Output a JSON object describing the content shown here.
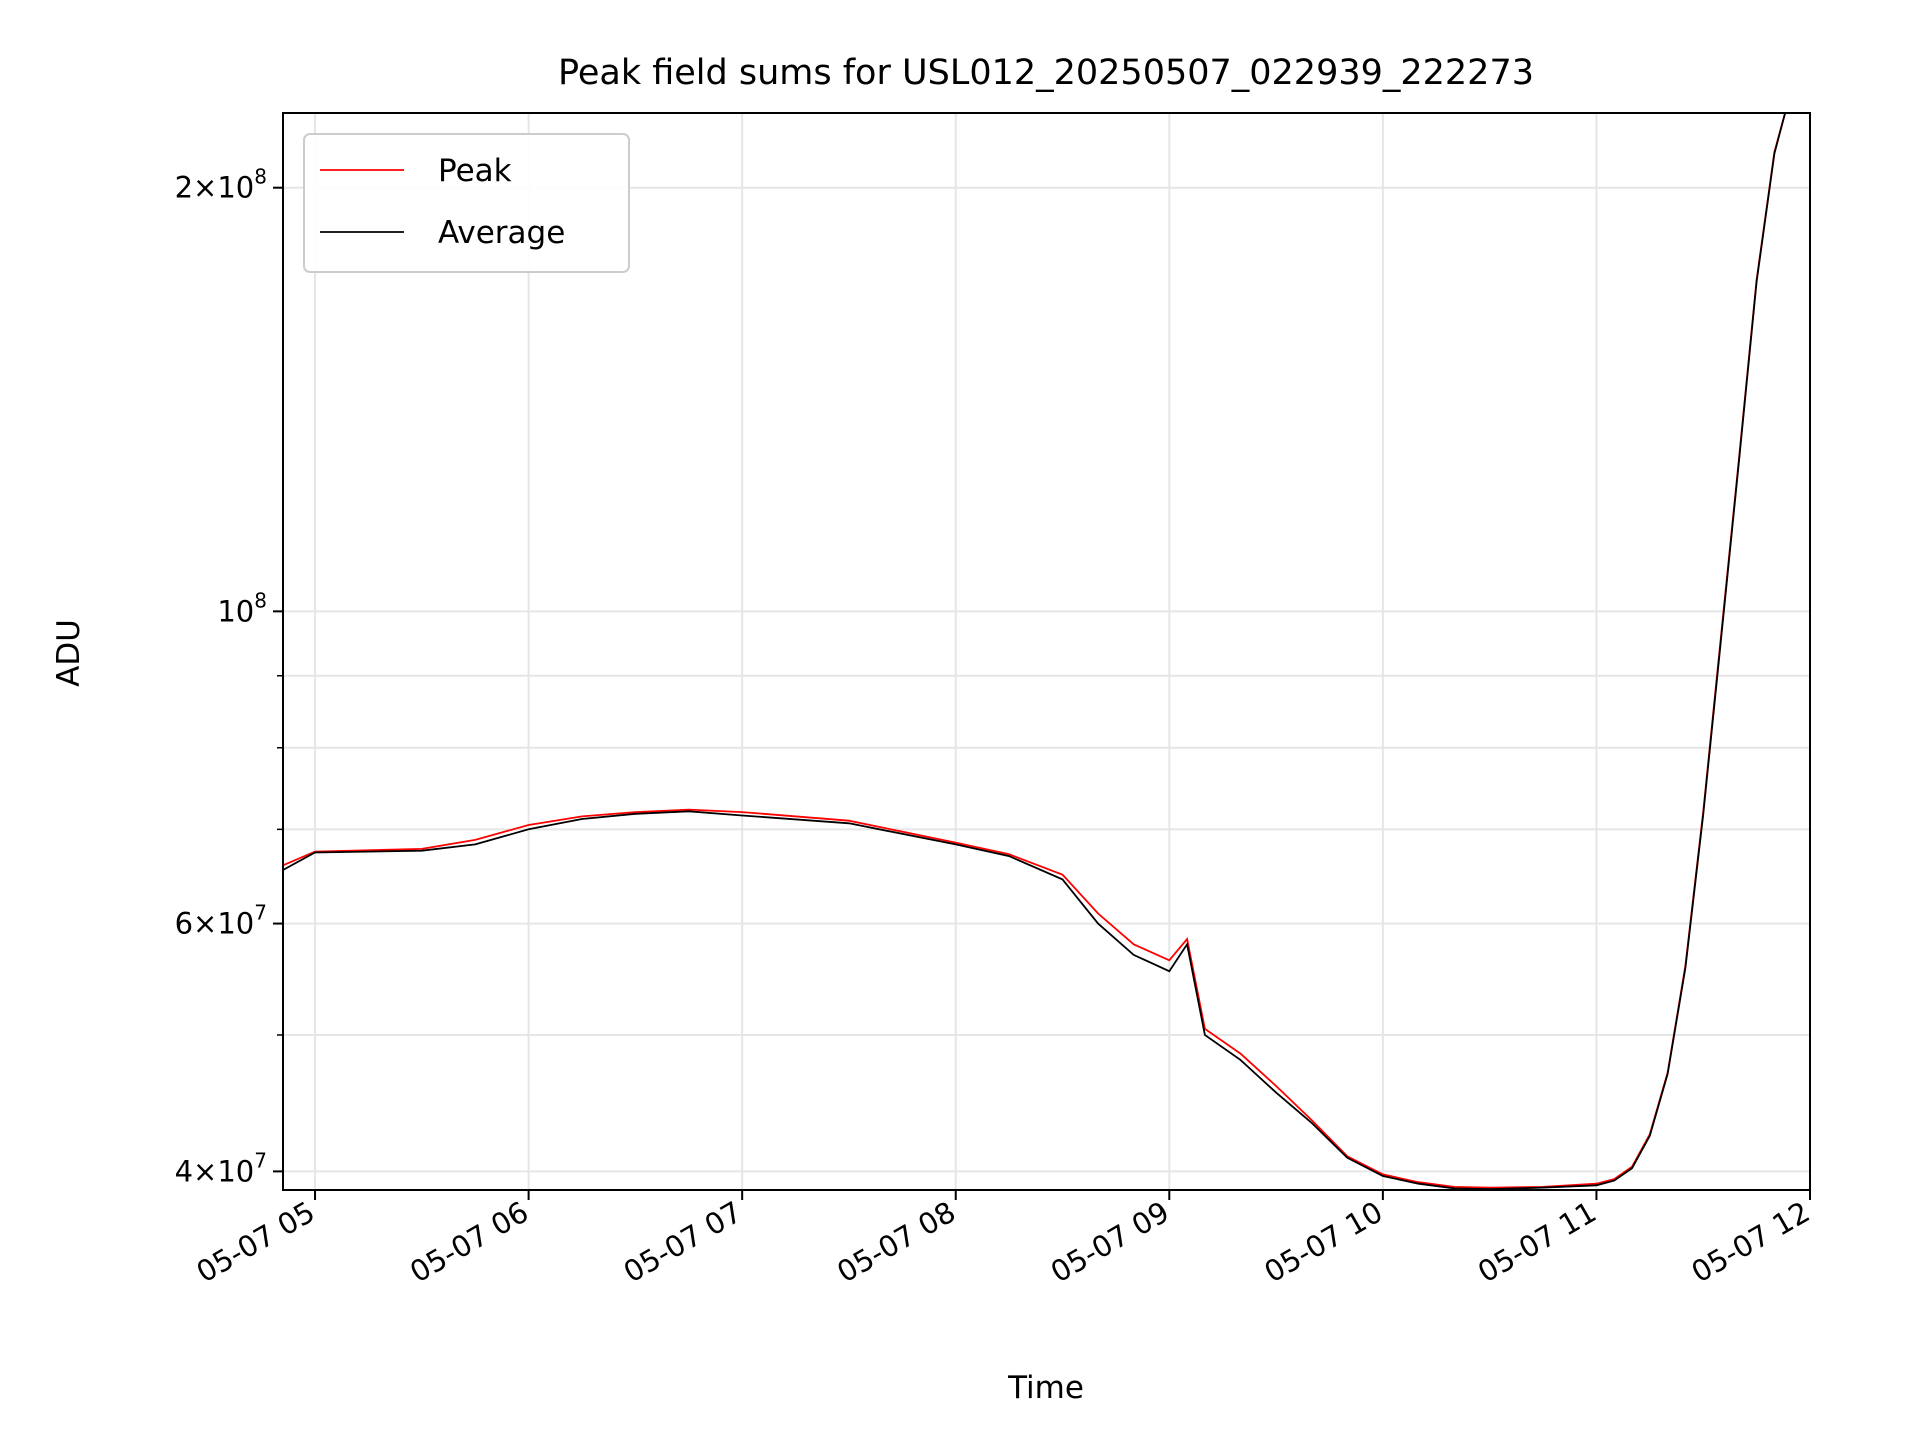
{
  "chart_data": {
    "type": "line",
    "title": "Peak field sums for USL012_20250507_022939_222273",
    "xlabel": "Time",
    "ylabel": "ADU",
    "y_scale": "log",
    "ylim": [
      38800000,
      226000000
    ],
    "xlim": [
      "05-07 04:51",
      "05-07 12:00"
    ],
    "grid": true,
    "legend_position": "top-left",
    "x_ticks": [
      "05-07 05",
      "05-07 06",
      "05-07 07",
      "05-07 08",
      "05-07 09",
      "05-07 10",
      "05-07 11",
      "05-07 12"
    ],
    "y_ticks": [
      {
        "value": 40000000,
        "base": "4",
        "exp": "7"
      },
      {
        "value": 60000000,
        "base": "6",
        "exp": "7"
      },
      {
        "value": 100000000,
        "base": "",
        "exp": "8"
      },
      {
        "value": 200000000,
        "base": "2",
        "exp": "8"
      }
    ],
    "y_minor_ticks": [
      50000000,
      70000000,
      80000000,
      90000000
    ],
    "series": [
      {
        "name": "Peak",
        "color": "#ff0000",
        "x": [
          "05-07 04:51",
          "05-07 05:00",
          "05-07 05:30",
          "05-07 05:45",
          "05-07 06:00",
          "05-07 06:15",
          "05-07 06:30",
          "05-07 06:45",
          "05-07 07:00",
          "05-07 07:30",
          "05-07 08:00",
          "05-07 08:15",
          "05-07 08:30",
          "05-07 08:40",
          "05-07 08:50",
          "05-07 09:00",
          "05-07 09:05",
          "05-07 09:10",
          "05-07 09:20",
          "05-07 09:30",
          "05-07 09:40",
          "05-07 09:50",
          "05-07 10:00",
          "05-07 10:10",
          "05-07 10:20",
          "05-07 10:30",
          "05-07 10:45",
          "05-07 11:00",
          "05-07 11:05",
          "05-07 11:10",
          "05-07 11:15",
          "05-07 11:20",
          "05-07 11:25",
          "05-07 11:30",
          "05-07 11:35",
          "05-07 11:40",
          "05-07 11:45",
          "05-07 11:50",
          "05-07 11:53"
        ],
        "y": [
          66000000,
          67500000,
          67800000,
          68800000,
          70500000,
          71500000,
          72000000,
          72300000,
          72000000,
          71000000,
          68500000,
          67200000,
          65000000,
          61000000,
          58000000,
          56500000,
          58500000,
          50500000,
          48500000,
          46000000,
          43500000,
          41000000,
          39800000,
          39300000,
          39000000,
          38950000,
          39000000,
          39200000,
          39500000,
          40300000,
          42500000,
          47000000,
          56000000,
          72000000,
          96000000,
          128000000,
          172000000,
          212000000,
          226000000
        ]
      },
      {
        "name": "Average",
        "color": "#000000",
        "x": [
          "05-07 04:51",
          "05-07 05:00",
          "05-07 05:30",
          "05-07 05:45",
          "05-07 06:00",
          "05-07 06:15",
          "05-07 06:30",
          "05-07 06:45",
          "05-07 07:00",
          "05-07 07:30",
          "05-07 08:00",
          "05-07 08:15",
          "05-07 08:30",
          "05-07 08:40",
          "05-07 08:50",
          "05-07 09:00",
          "05-07 09:05",
          "05-07 09:10",
          "05-07 09:20",
          "05-07 09:30",
          "05-07 09:40",
          "05-07 09:50",
          "05-07 10:00",
          "05-07 10:10",
          "05-07 10:20",
          "05-07 10:30",
          "05-07 10:45",
          "05-07 11:00",
          "05-07 11:05",
          "05-07 11:10",
          "05-07 11:15",
          "05-07 11:20",
          "05-07 11:25",
          "05-07 11:30",
          "05-07 11:35",
          "05-07 11:40",
          "05-07 11:45",
          "05-07 11:50",
          "05-07 11:53"
        ],
        "y": [
          65500000,
          67400000,
          67600000,
          68300000,
          70000000,
          71200000,
          71800000,
          72100000,
          71600000,
          70700000,
          68300000,
          67000000,
          64500000,
          60000000,
          57000000,
          55500000,
          58000000,
          50000000,
          48000000,
          45500000,
          43300000,
          40900000,
          39700000,
          39200000,
          38900000,
          38850000,
          38950000,
          39100000,
          39400000,
          40200000,
          42400000,
          46900000,
          55800000,
          71700000,
          95500000,
          127500000,
          171500000,
          211500000,
          226000000
        ]
      }
    ]
  }
}
